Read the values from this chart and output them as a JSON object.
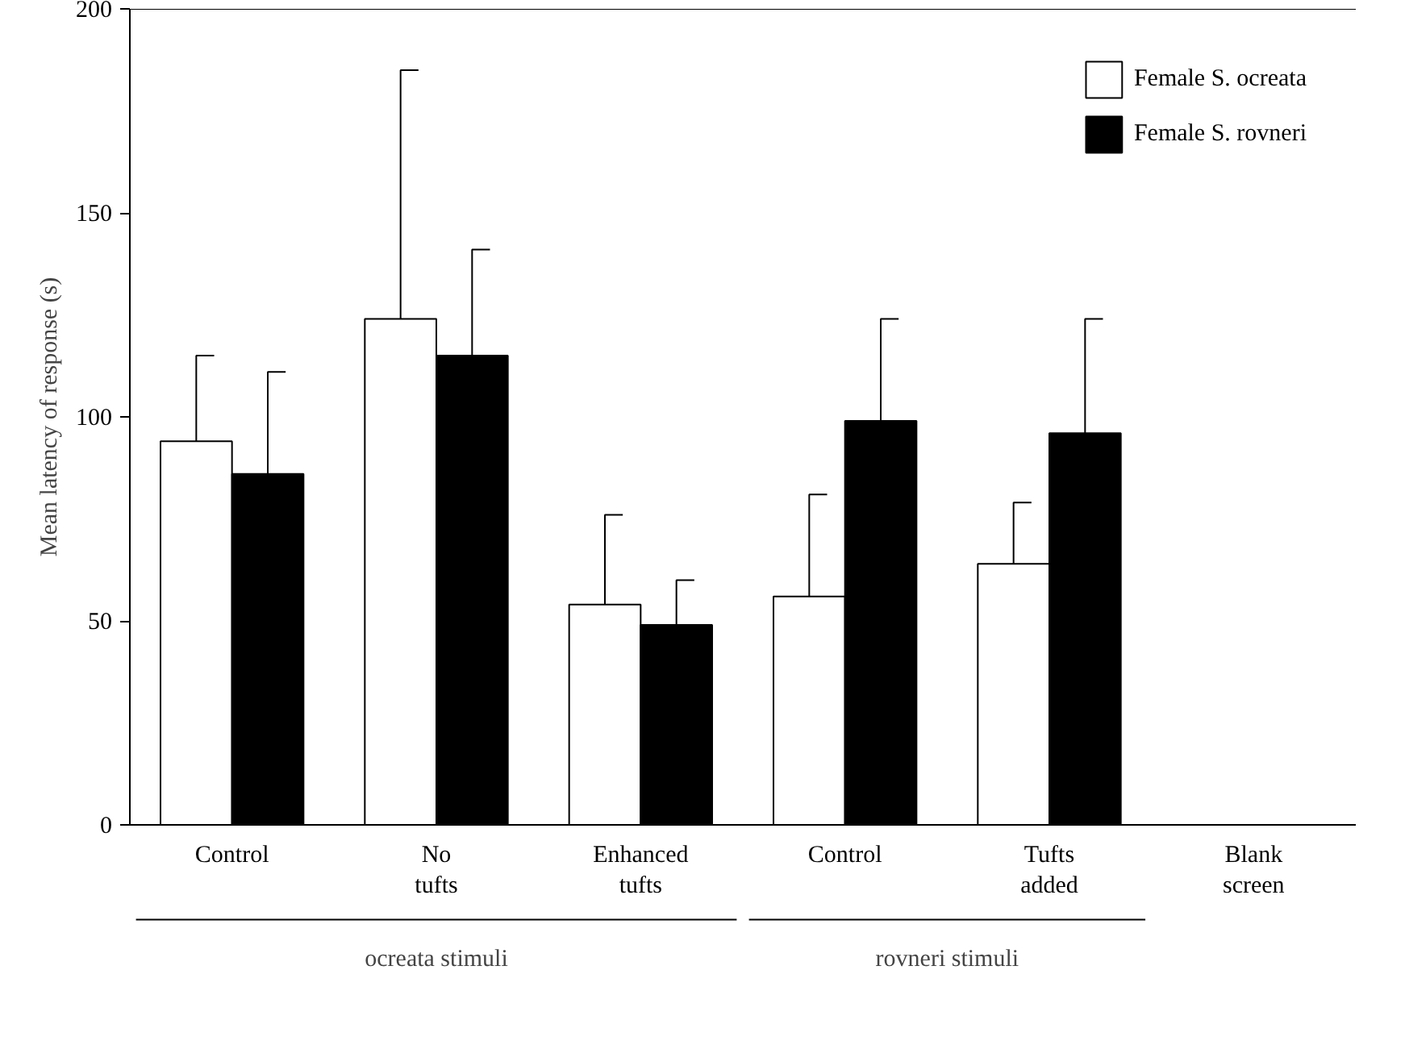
{
  "chart_data": {
    "type": "bar",
    "ylabel": "Mean latency of response (s)",
    "categories": [
      "Control",
      "No\ntufts",
      "Enhanced\ntufts",
      "Control",
      "Tufts\nadded",
      "Blank\nscreen"
    ],
    "series": [
      {
        "name": "Female S. ocreata",
        "color": "#ffffff",
        "values": [
          94,
          124,
          54,
          56,
          64,
          null
        ],
        "errors": [
          [
            94,
            115
          ],
          [
            124,
            185
          ],
          [
            54,
            76
          ],
          [
            56,
            81
          ],
          [
            64,
            79
          ],
          null
        ]
      },
      {
        "name": "Female S. rovneri",
        "color": "#000000",
        "values": [
          86,
          115,
          49,
          99,
          96,
          null
        ],
        "errors": [
          [
            86,
            111
          ],
          [
            115,
            141
          ],
          [
            49,
            60
          ],
          [
            99,
            124
          ],
          [
            96,
            124
          ],
          null
        ]
      }
    ],
    "ylim": [
      0,
      200
    ],
    "yticks": [
      0,
      50,
      100,
      150,
      200
    ],
    "grid": false,
    "legend": "top right",
    "annotations": [
      "ocreata stimuli",
      "rovneri stimuli"
    ]
  }
}
